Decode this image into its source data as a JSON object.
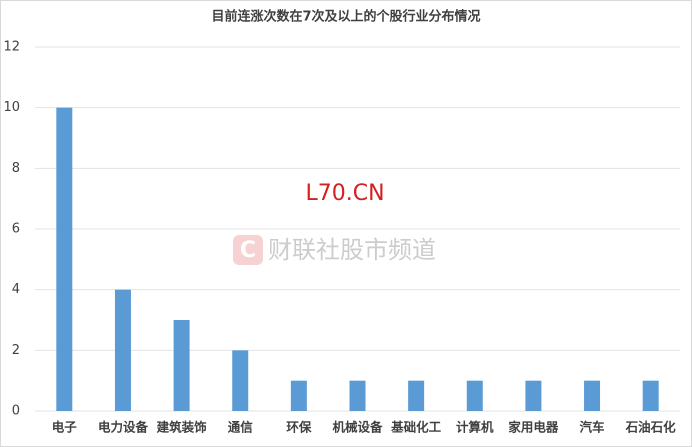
{
  "chart_data": {
    "type": "bar",
    "title": "目前连涨次数在7次及以上的个股行业分布情况",
    "categories": [
      "电子",
      "电力设备",
      "建筑装饰",
      "通信",
      "环保",
      "机械设备",
      "基础化工",
      "计算机",
      "家用电器",
      "汽车",
      "石油石化"
    ],
    "values": [
      10,
      4,
      3,
      2,
      1,
      1,
      1,
      1,
      1,
      1,
      1
    ],
    "color": "#5b9bd5",
    "ylim": [
      0,
      12
    ],
    "yticks": [
      0,
      2,
      4,
      6,
      8,
      10,
      12
    ],
    "grid": true,
    "annotations": [
      "L70.CN",
      "财联社股市频道"
    ]
  }
}
